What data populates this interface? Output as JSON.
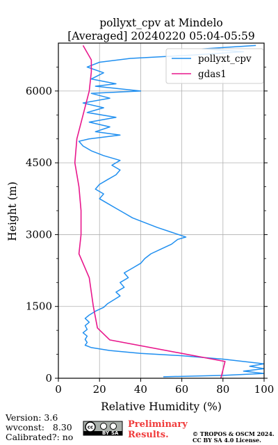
{
  "chart_data": {
    "type": "line",
    "title": [
      "pollyxt_cpv at Mindelo",
      "[Averaged] 20240220 05:04-05:59"
    ],
    "xlabel": "Relative Humidity (%)",
    "ylabel": "Height (m)",
    "xlim": [
      0,
      100
    ],
    "ylim": [
      0,
      7000
    ],
    "xticks": [
      "0",
      "20",
      "40",
      "60",
      "80",
      "100"
    ],
    "yticks": [
      "0",
      "1500",
      "3000",
      "4500",
      "6000"
    ],
    "ytick_values": [
      0,
      1500,
      3000,
      4500,
      6000
    ],
    "xtick_values": [
      0,
      20,
      40,
      60,
      80,
      100
    ],
    "grid": true,
    "legend_position": "top-right",
    "series": [
      {
        "name": "pollyxt_cpv",
        "color": "#1f8ff0",
        "points": [
          [
            51,
            30
          ],
          [
            80,
            60
          ],
          [
            100,
            100
          ],
          [
            90,
            150
          ],
          [
            100,
            200
          ],
          [
            93,
            250
          ],
          [
            100,
            300
          ],
          [
            80,
            400
          ],
          [
            60,
            470
          ],
          [
            40,
            520
          ],
          [
            25,
            580
          ],
          [
            16,
            640
          ],
          [
            13,
            690
          ],
          [
            14,
            750
          ],
          [
            13,
            810
          ],
          [
            14,
            880
          ],
          [
            12,
            950
          ],
          [
            14,
            1020
          ],
          [
            13,
            1100
          ],
          [
            15,
            1170
          ],
          [
            13,
            1250
          ],
          [
            15,
            1320
          ],
          [
            18,
            1400
          ],
          [
            22,
            1480
          ],
          [
            24,
            1560
          ],
          [
            27,
            1640
          ],
          [
            30,
            1720
          ],
          [
            28,
            1800
          ],
          [
            32,
            1900
          ],
          [
            30,
            2000
          ],
          [
            34,
            2100
          ],
          [
            32,
            2200
          ],
          [
            36,
            2300
          ],
          [
            40,
            2400
          ],
          [
            42,
            2500
          ],
          [
            45,
            2600
          ],
          [
            50,
            2700
          ],
          [
            55,
            2800
          ],
          [
            58,
            2900
          ],
          [
            62,
            2950
          ],
          [
            55,
            3050
          ],
          [
            48,
            3150
          ],
          [
            42,
            3250
          ],
          [
            36,
            3350
          ],
          [
            32,
            3450
          ],
          [
            28,
            3550
          ],
          [
            24,
            3650
          ],
          [
            20,
            3750
          ],
          [
            22,
            3850
          ],
          [
            18,
            3950
          ],
          [
            20,
            4050
          ],
          [
            24,
            4150
          ],
          [
            28,
            4250
          ],
          [
            30,
            4350
          ],
          [
            26,
            4450
          ],
          [
            30,
            4550
          ],
          [
            22,
            4650
          ],
          [
            16,
            4750
          ],
          [
            12,
            4850
          ],
          [
            10,
            4950
          ],
          [
            15,
            5000
          ],
          [
            30,
            5080
          ],
          [
            18,
            5150
          ],
          [
            25,
            5250
          ],
          [
            15,
            5350
          ],
          [
            28,
            5450
          ],
          [
            14,
            5550
          ],
          [
            22,
            5650
          ],
          [
            12,
            5750
          ],
          [
            25,
            5850
          ],
          [
            16,
            5950
          ],
          [
            40,
            6000
          ],
          [
            18,
            6100
          ],
          [
            28,
            6150
          ],
          [
            16,
            6250
          ],
          [
            22,
            6380
          ],
          [
            14,
            6500
          ],
          [
            20,
            6600
          ],
          [
            35,
            6680
          ],
          [
            65,
            6750
          ],
          [
            90,
            6820
          ],
          [
            70,
            6880
          ],
          [
            96,
            6950
          ]
        ]
      },
      {
        "name": "gdas1",
        "color": "#e8168c",
        "points": [
          [
            79,
            0
          ],
          [
            81,
            350
          ],
          [
            25,
            800
          ],
          [
            19,
            1050
          ],
          [
            17,
            1500
          ],
          [
            15,
            2100
          ],
          [
            10,
            2600
          ],
          [
            11,
            3000
          ],
          [
            11,
            3500
          ],
          [
            10,
            4000
          ],
          [
            8,
            4500
          ],
          [
            9,
            5000
          ],
          [
            12,
            5500
          ],
          [
            15,
            6000
          ],
          [
            16,
            6400
          ],
          [
            16,
            6650
          ],
          [
            12,
            6950
          ]
        ]
      }
    ]
  },
  "footer": {
    "version": "Version: 3.6",
    "wvconst": "wvconst:   8.30",
    "calibrated": "Calibrated?: no",
    "license_badge": "cc-by-sa-badge",
    "preliminary_line1": "Preliminary",
    "preliminary_line2": "Results.",
    "copyright_line1": "© TROPOS & OSCM 2024.",
    "copyright_line2": "CC BY SA 4.0 License."
  }
}
